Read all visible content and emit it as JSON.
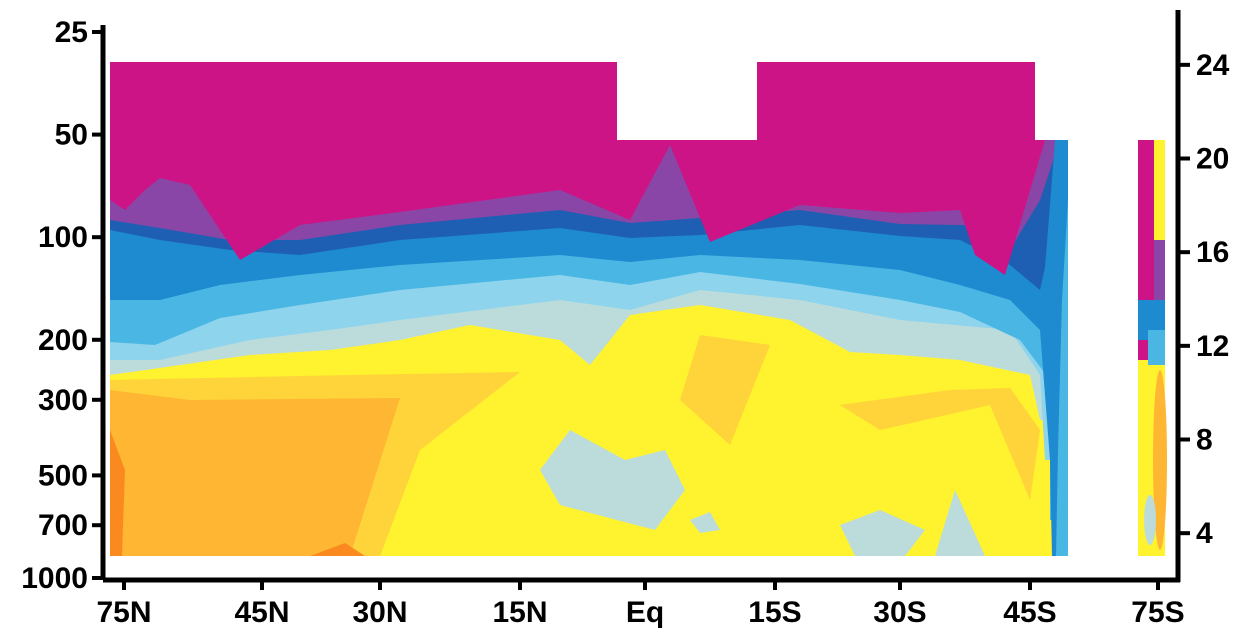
{
  "chart_data": {
    "type": "heatmap",
    "title": "",
    "xlabel": "",
    "ylabel": "",
    "x_ticks": [
      "75N",
      "45N",
      "30N",
      "15N",
      "Eq",
      "15S",
      "30S",
      "45S",
      "75S"
    ],
    "y_ticks_left": [
      "25",
      "50",
      "100",
      "200",
      "300",
      "500",
      "700",
      "1000"
    ],
    "y_ticks_right": [
      "24",
      "20",
      "16",
      "12",
      "8",
      "4"
    ],
    "y_left_scale": "log",
    "y_left_reversed": true,
    "y_right_range": [
      2,
      26
    ],
    "grid": false,
    "legend": "none",
    "x_gap": "between 45S and 75S",
    "colormap": {
      "top": "#cc1486",
      "magenta": "#cc1486",
      "purple": "#8a46a6",
      "dark_blue": "#1e5fb4",
      "blue": "#1e8ad0",
      "light_blue": "#4ab6e4",
      "pale_blue": "#8ed4ec",
      "gray_blue": "#bcdcdc",
      "yellow": "#fff22e",
      "gold": "#ffd33a",
      "orange": "#ffb632",
      "dark_orange": "#fa8a20"
    }
  }
}
